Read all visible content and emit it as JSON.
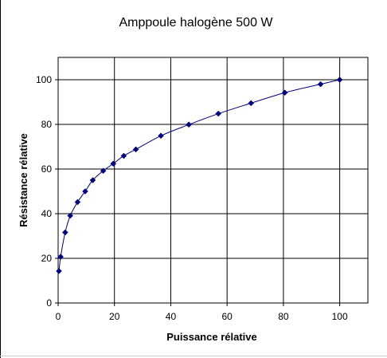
{
  "chart_data": {
    "type": "line",
    "title": "Amppoule halogène 500 W",
    "xlabel": "Puissance rélative",
    "ylabel": "Résistance rélative",
    "xlim": [
      0,
      110
    ],
    "ylim": [
      0,
      110
    ],
    "xticks": [
      0,
      20,
      40,
      60,
      80,
      100
    ],
    "yticks": [
      0,
      20,
      40,
      60,
      80,
      100
    ],
    "xtick_labels": [
      "0",
      "20",
      "40",
      "60",
      "80",
      "100"
    ],
    "ytick_labels": [
      "0",
      "20",
      "40",
      "60",
      "80",
      "100"
    ],
    "grid": true,
    "marker": "diamond",
    "smooth": true,
    "colors": {
      "line": "#000080",
      "marker": "#000080",
      "axis": "#000000",
      "grid": "#000000"
    },
    "series": [
      {
        "x": [
          0.3,
          0.9,
          2.5,
          4.3,
          6.9,
          9.6,
          12.3,
          16.0,
          19.6,
          23.3,
          27.6,
          36.5,
          46.4,
          56.9,
          68.5,
          80.5,
          93.2,
          100
        ],
        "values": [
          14.3,
          20.7,
          31.6,
          39.1,
          45.2,
          50.0,
          55.0,
          59.2,
          62.4,
          65.9,
          68.8,
          74.9,
          79.9,
          84.8,
          89.5,
          94.2,
          98.0,
          100
        ]
      }
    ]
  }
}
